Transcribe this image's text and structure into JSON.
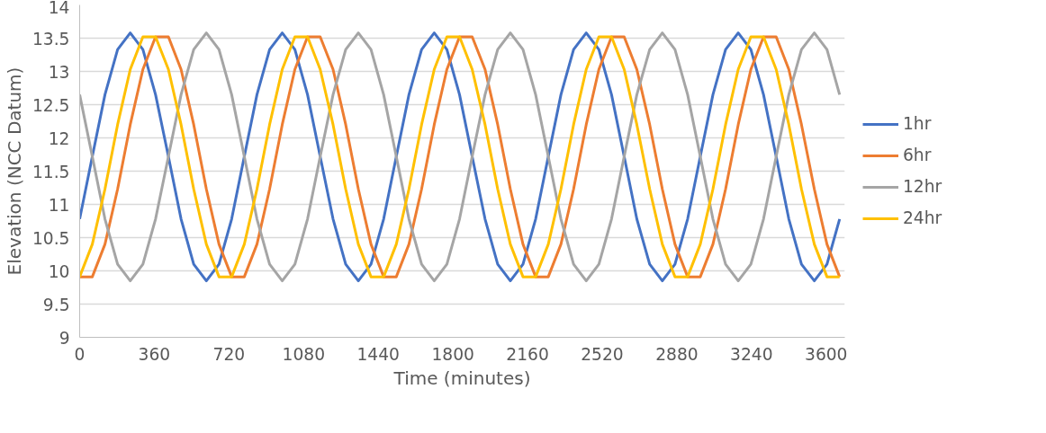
{
  "chart_data": {
    "type": "line",
    "xlabel": "Time (minutes)",
    "ylabel": "Elevation (NCC Datum)",
    "x": [
      0,
      61,
      122,
      183,
      244,
      305,
      366,
      428,
      489,
      550,
      611,
      672,
      733,
      794,
      855,
      916,
      977,
      1038,
      1099,
      1160,
      1222,
      1283,
      1344,
      1405,
      1466,
      1527,
      1588,
      1649,
      1710,
      1771,
      1832,
      1893,
      1955,
      2016,
      2077,
      2138,
      2199,
      2260,
      2321,
      2382,
      2443,
      2504,
      2565,
      2626,
      2687,
      2749,
      2810,
      2871,
      2932,
      2993,
      3054,
      3115,
      3176,
      3237,
      3298,
      3359,
      3420,
      3481,
      3543,
      3604,
      3665
    ],
    "series": [
      {
        "name": "1hr",
        "color": "#4472c4",
        "values": [
          10.78,
          11.72,
          12.65,
          13.33,
          13.58,
          13.33,
          12.65,
          11.72,
          10.78,
          10.1,
          9.85,
          10.1,
          10.78,
          11.72,
          12.65,
          13.33,
          13.58,
          13.33,
          12.65,
          11.72,
          10.78,
          10.1,
          9.85,
          10.1,
          10.78,
          11.72,
          12.65,
          13.33,
          13.58,
          13.33,
          12.65,
          11.72,
          10.78,
          10.1,
          9.85,
          10.1,
          10.78,
          11.72,
          12.65,
          13.33,
          13.58,
          13.33,
          12.65,
          11.72,
          10.78,
          10.1,
          9.85,
          10.1,
          10.78,
          11.72,
          12.65,
          13.33,
          13.58,
          13.33,
          12.65,
          11.72,
          10.78,
          10.1,
          9.85,
          10.1,
          10.78
        ]
      },
      {
        "name": "6hr",
        "color": "#ed7d31",
        "values": [
          9.91,
          9.91,
          10.4,
          11.23,
          12.2,
          13.03,
          13.52,
          13.52,
          13.03,
          12.2,
          11.23,
          10.4,
          9.91,
          9.91,
          10.4,
          11.23,
          12.2,
          13.03,
          13.52,
          13.52,
          13.03,
          12.2,
          11.23,
          10.4,
          9.91,
          9.91,
          10.4,
          11.23,
          12.2,
          13.03,
          13.52,
          13.52,
          13.03,
          12.2,
          11.23,
          10.4,
          9.91,
          9.91,
          10.4,
          11.23,
          12.2,
          13.03,
          13.52,
          13.52,
          13.03,
          12.2,
          11.23,
          10.4,
          9.91,
          9.91,
          10.4,
          11.23,
          12.2,
          13.03,
          13.52,
          13.52,
          13.03,
          12.2,
          11.23,
          10.4,
          9.91
        ]
      },
      {
        "name": "12hr",
        "color": "#a5a5a5",
        "values": [
          12.65,
          11.72,
          10.78,
          10.1,
          9.85,
          10.1,
          10.78,
          11.72,
          12.65,
          13.33,
          13.58,
          13.33,
          12.65,
          11.72,
          10.78,
          10.1,
          9.85,
          10.1,
          10.78,
          11.72,
          12.65,
          13.33,
          13.58,
          13.33,
          12.65,
          11.72,
          10.78,
          10.1,
          9.85,
          10.1,
          10.78,
          11.72,
          12.65,
          13.33,
          13.58,
          13.33,
          12.65,
          11.72,
          10.78,
          10.1,
          9.85,
          10.1,
          10.78,
          11.72,
          12.65,
          13.33,
          13.58,
          13.33,
          12.65,
          11.72,
          10.78,
          10.1,
          9.85,
          10.1,
          10.78,
          11.72,
          12.65,
          13.33,
          13.58,
          13.33,
          12.65
        ]
      },
      {
        "name": "24hr",
        "color": "#ffc000",
        "values": [
          9.91,
          10.4,
          11.23,
          12.2,
          13.03,
          13.52,
          13.52,
          13.03,
          12.2,
          11.23,
          10.4,
          9.91,
          9.91,
          10.4,
          11.23,
          12.2,
          13.03,
          13.52,
          13.52,
          13.03,
          12.2,
          11.23,
          10.4,
          9.91,
          9.91,
          10.4,
          11.23,
          12.2,
          13.03,
          13.52,
          13.52,
          13.03,
          12.2,
          11.23,
          10.4,
          9.91,
          9.91,
          10.4,
          11.23,
          12.2,
          13.03,
          13.52,
          13.52,
          13.03,
          12.2,
          11.23,
          10.4,
          9.91,
          9.91,
          10.4,
          11.23,
          12.2,
          13.03,
          13.52,
          13.52,
          13.03,
          12.2,
          11.23,
          10.4,
          9.91,
          9.91
        ]
      }
    ],
    "xlim": [
      0,
      3690
    ],
    "ylim": [
      9,
      14
    ],
    "xticks": [
      0,
      360,
      720,
      1080,
      1440,
      1800,
      2160,
      2520,
      2880,
      3240,
      3600
    ],
    "yticks": [
      9,
      9.5,
      10,
      10.5,
      11,
      11.5,
      12,
      12.5,
      13,
      13.5,
      14
    ],
    "grid": "y",
    "legend": "right",
    "marker": "none",
    "line_style": "solid"
  }
}
